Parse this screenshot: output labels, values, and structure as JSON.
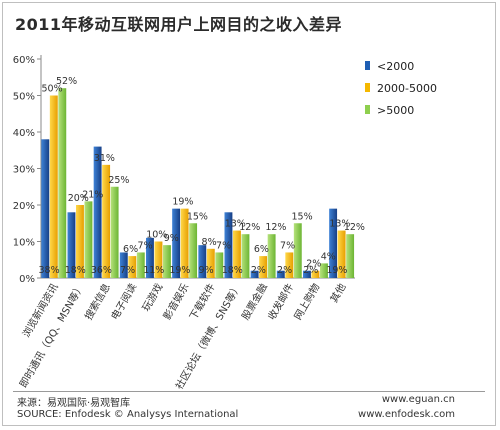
{
  "title": "2011年移动互联网用户上网目的之收入差异",
  "footer": {
    "source_cn": "来源：易观国际·易观智库",
    "source_en": "SOURCE: Enfodesk © Analysys International",
    "url_1": "www.eguan.cn",
    "url_2": "www.enfodesk.com"
  },
  "chart_data": {
    "type": "bar",
    "title": "2011年移动互联网用户上网目的之收入差异",
    "categories": [
      "浏览新闻资讯",
      "即时通讯（QQ、MSN等）",
      "搜索信息",
      "电子阅读",
      "玩游戏",
      "影音娱乐",
      "下载软件",
      "社区论坛（微博、SNS等）",
      "股票金融",
      "收发邮件",
      "网上购物",
      "其他"
    ],
    "series": [
      {
        "name": "<2000",
        "color": "#1f5fb4",
        "values": [
          38,
          18,
          36,
          7,
          11,
          19,
          9,
          18,
          2,
          2,
          2,
          19
        ]
      },
      {
        "name": "2000-5000",
        "color": "#f5b800",
        "values": [
          50,
          20,
          31,
          6,
          10,
          19,
          8,
          13,
          6,
          7,
          2,
          13
        ]
      },
      {
        "name": ">5000",
        "color": "#8ecf4e",
        "values": [
          52,
          21,
          25,
          7,
          9,
          15,
          7,
          12,
          12,
          15,
          4,
          12
        ]
      }
    ],
    "labels": [
      [
        "38%",
        "50%",
        "52%"
      ],
      [
        "18%",
        "20%",
        "21%"
      ],
      [
        "36%",
        "31%",
        "25%"
      ],
      [
        "7%",
        "6%",
        "7%"
      ],
      [
        "11%",
        "10%",
        "9%"
      ],
      [
        "19%",
        "19%",
        "15%"
      ],
      [
        "9%",
        "8%",
        "7%"
      ],
      [
        "18%",
        "13%",
        "12%"
      ],
      [
        "2%",
        "6%",
        "12%"
      ],
      [
        "2%",
        "7%",
        "15%"
      ],
      [
        "2%",
        "2%",
        "4%"
      ],
      [
        "19%",
        "13%",
        "12%"
      ]
    ],
    "yticks": [
      "0%",
      "10%",
      "20%",
      "30%",
      "40%",
      "50%",
      "60%"
    ],
    "ylim": [
      0,
      60
    ],
    "grid": false,
    "legend": "right"
  }
}
